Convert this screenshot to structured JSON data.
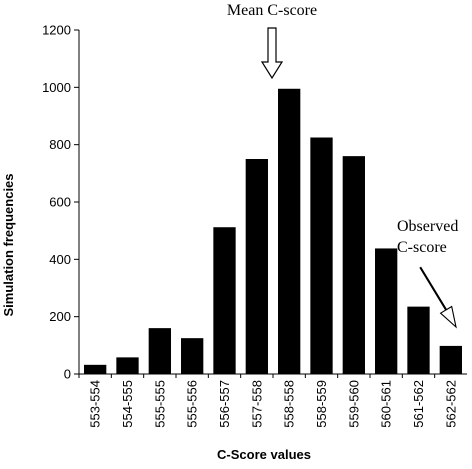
{
  "chart_data": {
    "type": "bar",
    "categories": [
      "553-554",
      "554-555",
      "555-555",
      "555-556",
      "556-557",
      "557-558",
      "558-558",
      "558-559",
      "559-560",
      "560-561",
      "561-562",
      "562-562"
    ],
    "values": [
      32,
      58,
      160,
      125,
      512,
      750,
      995,
      825,
      760,
      438,
      235,
      98
    ],
    "xlabel": "C-Score values",
    "ylabel": "Simulation frequencies",
    "ylim": [
      0,
      1200
    ],
    "yticks": [
      0,
      200,
      400,
      600,
      800,
      1000,
      1200
    ],
    "grid": false,
    "bar_color": "#000000",
    "annotations": {
      "mean": "Mean C-score",
      "observed_line1": "Observed",
      "observed_line2": "C-score"
    }
  }
}
